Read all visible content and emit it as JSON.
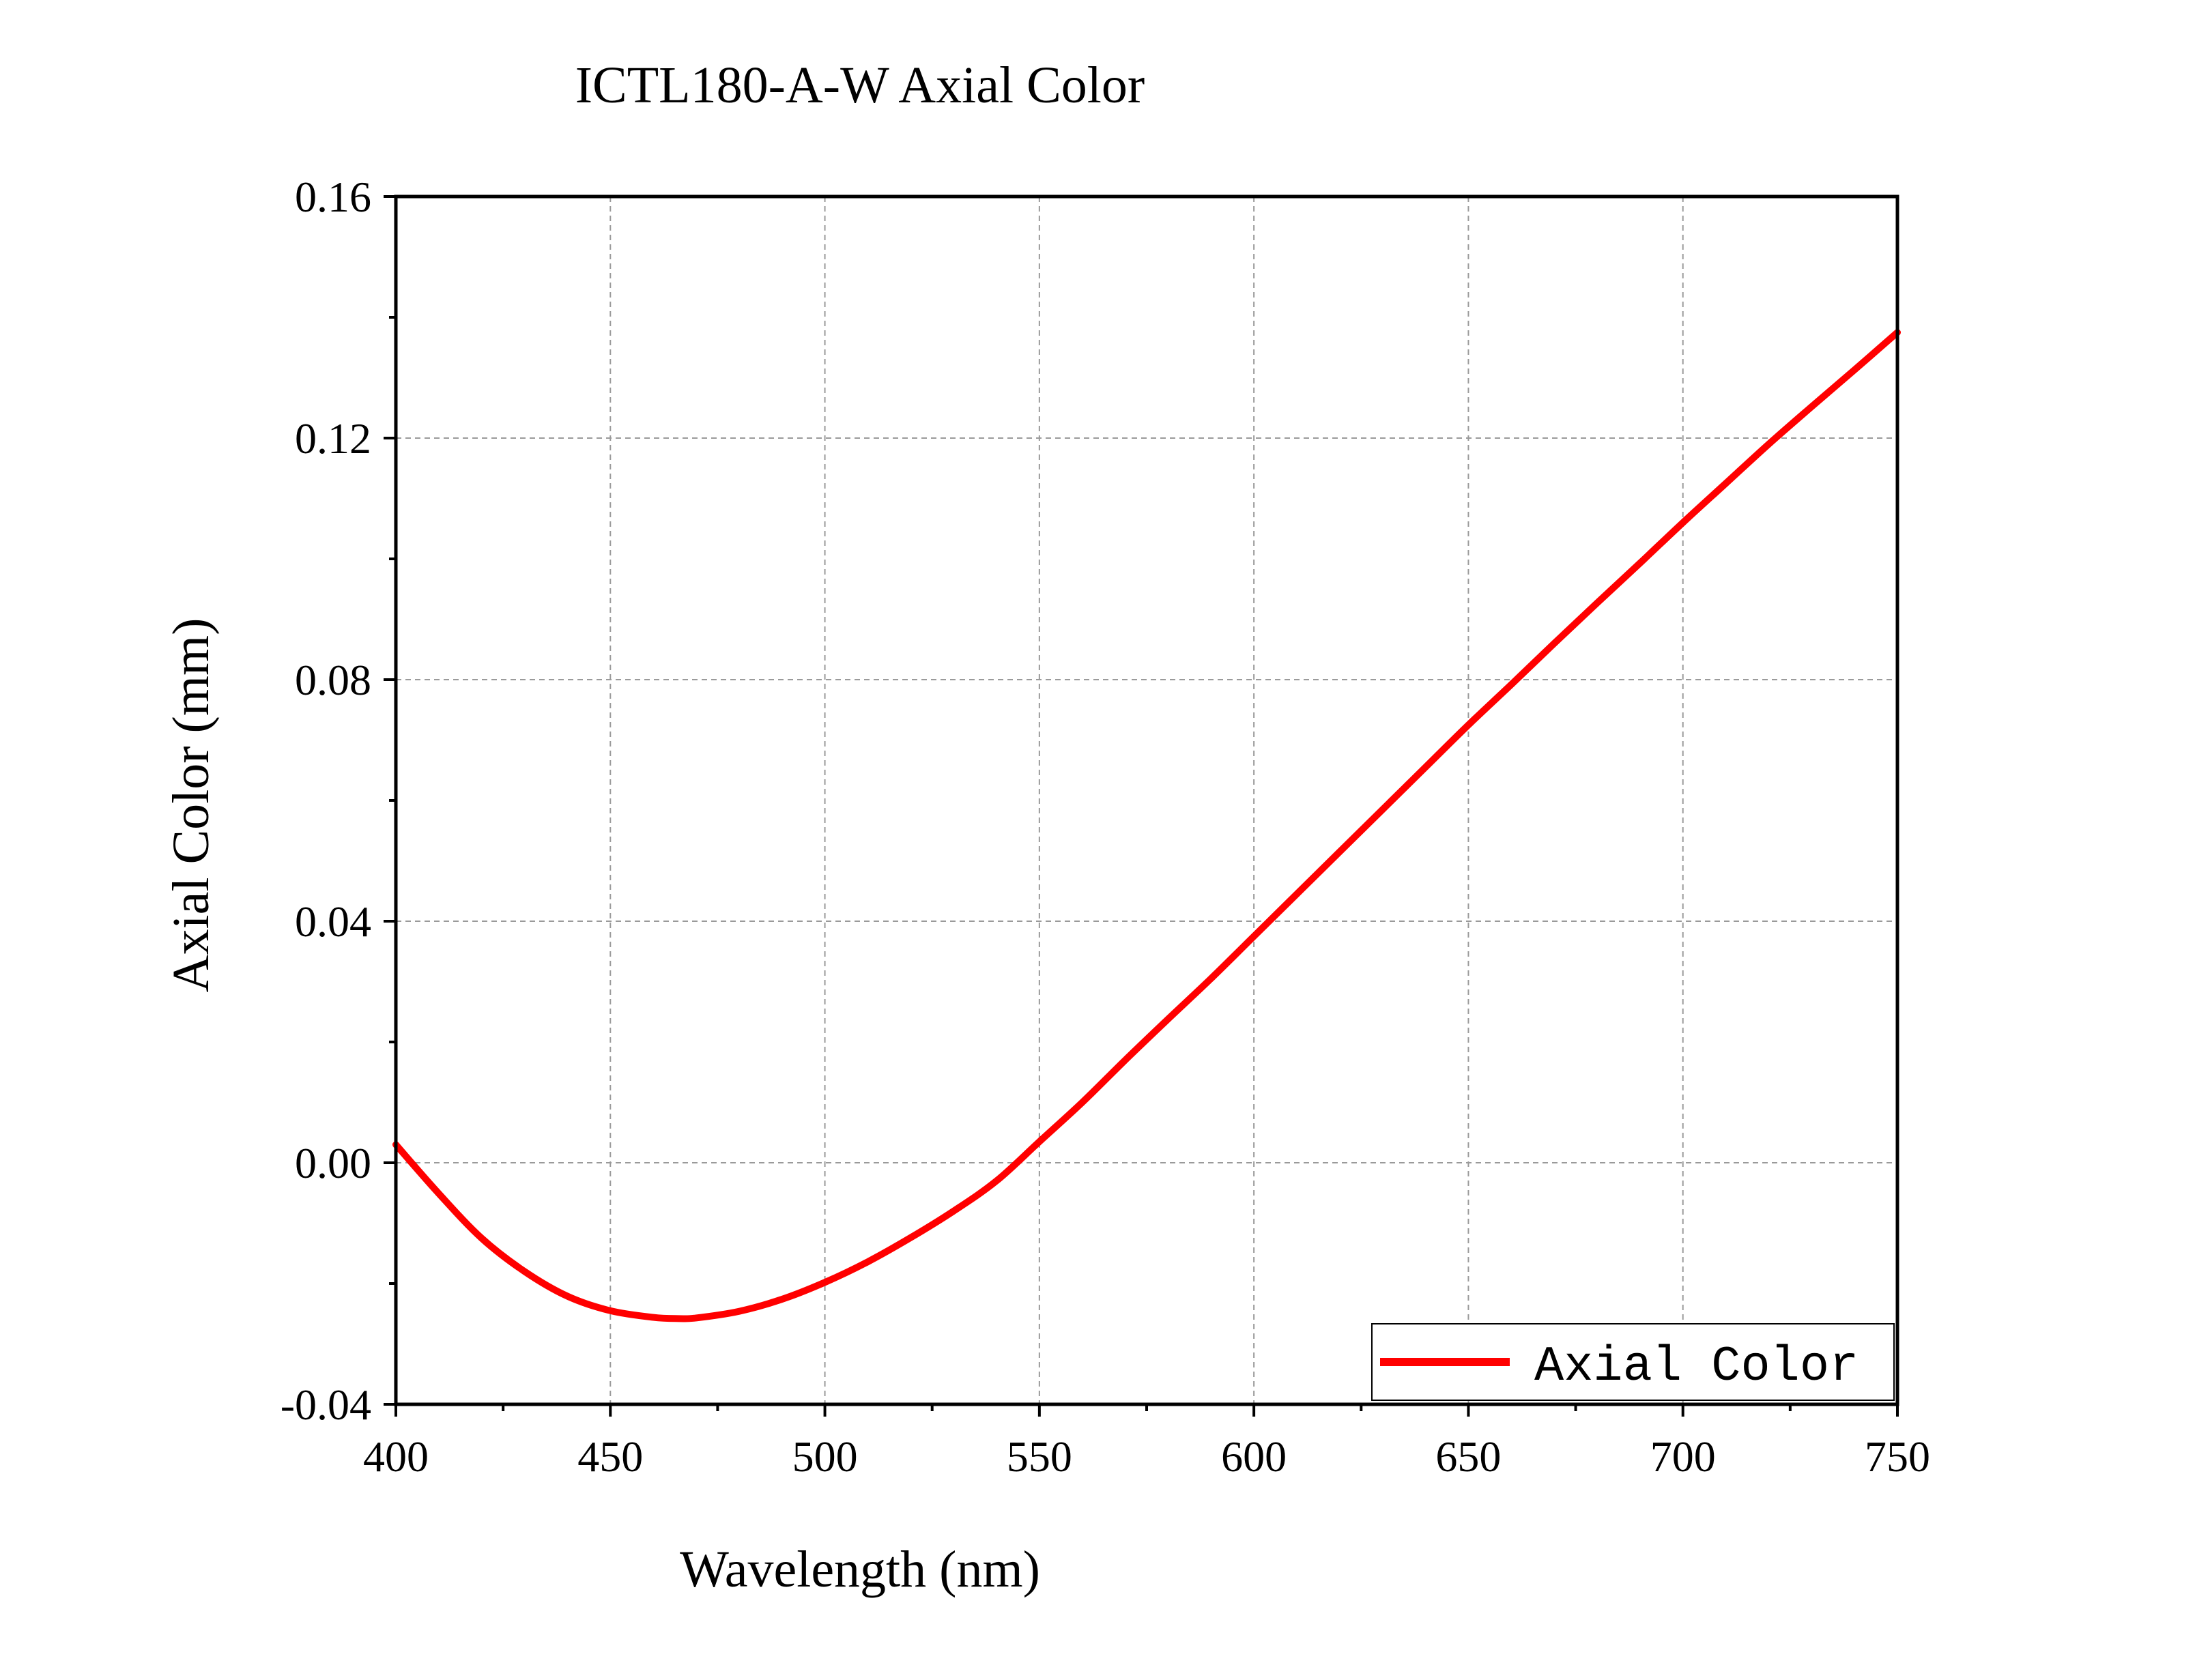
{
  "chart_data": {
    "type": "line",
    "title": "ICTL180-A-W Axial Color",
    "xlabel": "Wavelength (nm)",
    "ylabel": "Axial Color (mm)",
    "xlim": [
      400,
      750
    ],
    "ylim": [
      -0.04,
      0.16
    ],
    "x_ticks": [
      "400",
      "450",
      "500",
      "550",
      "600",
      "650",
      "700",
      "750"
    ],
    "y_ticks": [
      "-0.04",
      "0.00",
      "0.04",
      "0.08",
      "0.12",
      "0.16"
    ],
    "grid": true,
    "legend_position": "bottom-right",
    "series": [
      {
        "name": "Axial Color",
        "color": "#ff0000",
        "x": [
          400,
          410,
          420,
          430,
          440,
          450,
          460,
          466,
          470,
          480,
          490,
          500,
          510,
          520,
          530,
          540,
          550,
          560,
          570,
          580,
          590,
          600,
          610,
          620,
          630,
          640,
          650,
          660,
          670,
          680,
          690,
          700,
          710,
          720,
          730,
          740,
          750
        ],
        "y": [
          0.003,
          -0.0051,
          -0.0125,
          -0.018,
          -0.0221,
          -0.0245,
          -0.0256,
          -0.0258,
          -0.0257,
          -0.0246,
          -0.0226,
          -0.0198,
          -0.0164,
          -0.0124,
          -0.008,
          -0.003,
          0.0035,
          0.01,
          0.017,
          0.0238,
          0.0305,
          0.0375,
          0.0445,
          0.0515,
          0.0585,
          0.0655,
          0.0725,
          0.0792,
          0.086,
          0.0927,
          0.0993,
          0.106,
          0.1125,
          0.119,
          0.1252,
          0.1313,
          0.1375
        ]
      }
    ]
  }
}
